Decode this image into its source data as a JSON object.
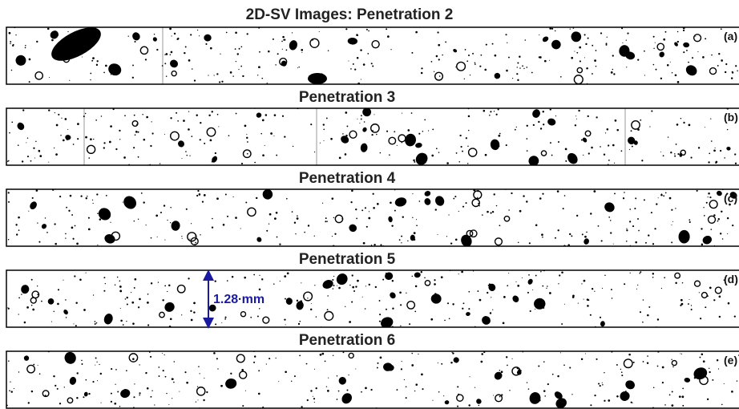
{
  "header": {
    "title": "2D-SV Images: Penetration 2"
  },
  "panels": [
    {
      "label": "(a)"
    },
    {
      "title": "Penetration 3",
      "label": "(b)"
    },
    {
      "title": "Penetration 4",
      "label": "(c)"
    },
    {
      "title": "Penetration 5",
      "label": "(d)"
    },
    {
      "title": "Penetration 6",
      "label": "(e)"
    }
  ],
  "annotation": "1.28 mm"
}
